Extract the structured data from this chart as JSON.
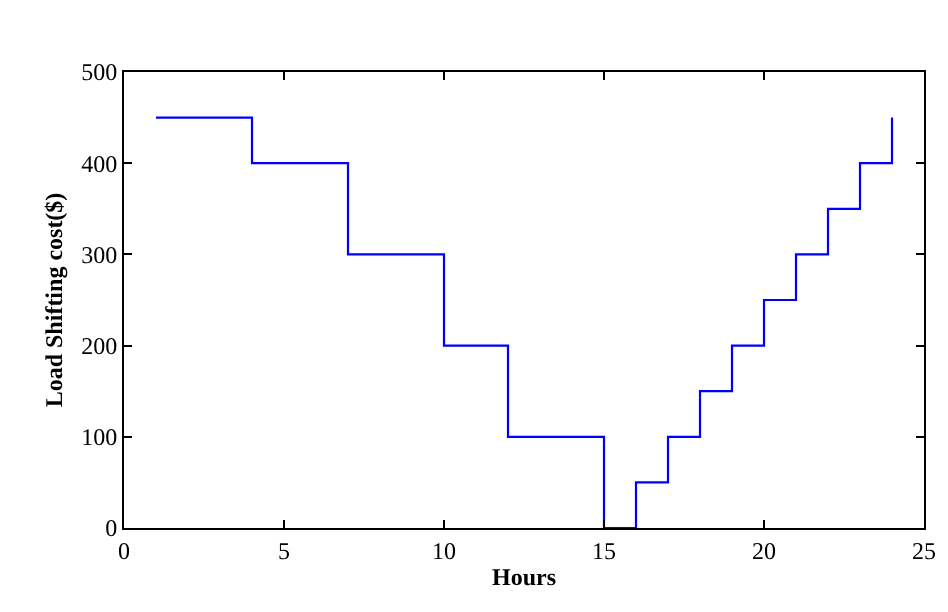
{
  "chart_data": {
    "type": "step",
    "xlabel": "Hours",
    "ylabel": "Load Shifting cost($)",
    "x": [
      1,
      4,
      7,
      10,
      12,
      15,
      16,
      17,
      18,
      19,
      20,
      21,
      22,
      23,
      24
    ],
    "series": [
      {
        "color": "#0000ff",
        "values": [
          450,
          400,
          300,
          200,
          100,
          0,
          50,
          100,
          150,
          200,
          250,
          300,
          350,
          400,
          450
        ]
      }
    ],
    "xlim": [
      0,
      25
    ],
    "xticks": [
      0,
      5,
      10,
      15,
      20,
      25
    ],
    "ylim": [
      0,
      500
    ],
    "yticks": [
      0,
      100,
      200,
      300,
      400,
      500
    ],
    "grid": false,
    "marker": "none",
    "line_style": "solid"
  }
}
